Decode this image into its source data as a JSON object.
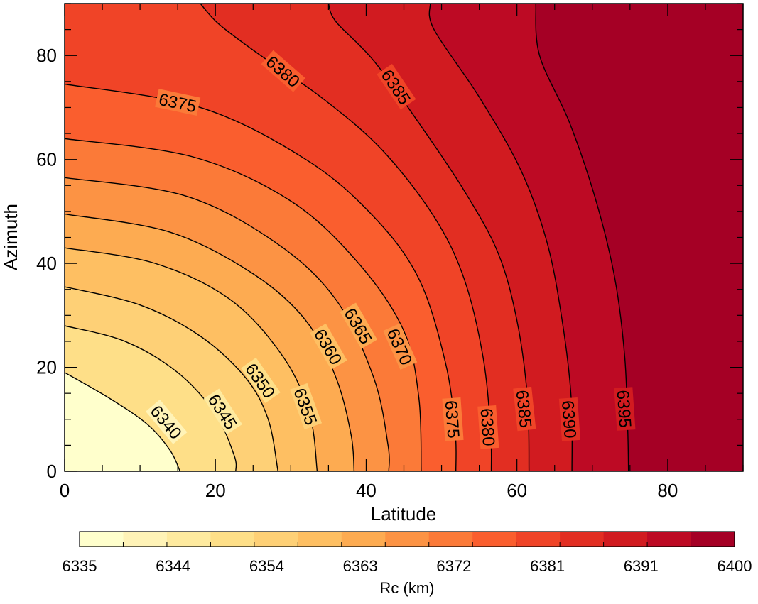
{
  "chart_data": {
    "type": "contour",
    "xlabel": "Latitude",
    "ylabel": "Azimuth",
    "xlim": [
      0,
      90
    ],
    "ylim": [
      0,
      90
    ],
    "x_ticks": [
      0,
      20,
      40,
      60,
      80
    ],
    "y_ticks": [
      0,
      20,
      40,
      60,
      80
    ],
    "x_tick_labels": [
      "0",
      "20",
      "40",
      "60",
      "80"
    ],
    "y_tick_labels": [
      "0",
      "20",
      "40",
      "60",
      "80"
    ],
    "levels": [
      6340,
      6345,
      6350,
      6355,
      6360,
      6365,
      6370,
      6375,
      6380,
      6385,
      6390,
      6395
    ],
    "level_labels": [
      "6340",
      "6345",
      "6350",
      "6355",
      "6360",
      "6365",
      "6370",
      "6375",
      "6380",
      "6385",
      "6390",
      "6395"
    ],
    "contours": [
      {
        "level": 6340,
        "points": [
          [
            0,
            19
          ],
          [
            6,
            14
          ],
          [
            11,
            9
          ],
          [
            14,
            4
          ],
          [
            15.3,
            0
          ]
        ]
      },
      {
        "level": 6345,
        "points": [
          [
            0,
            28
          ],
          [
            8,
            25
          ],
          [
            15,
            19
          ],
          [
            20,
            11
          ],
          [
            22.5,
            3
          ],
          [
            22.7,
            0
          ]
        ]
      },
      {
        "level": 6350,
        "points": [
          [
            0,
            35.5
          ],
          [
            10,
            32
          ],
          [
            18,
            26
          ],
          [
            24,
            18
          ],
          [
            27,
            10
          ],
          [
            28.3,
            0
          ]
        ]
      },
      {
        "level": 6355,
        "points": [
          [
            0,
            43
          ],
          [
            12,
            40
          ],
          [
            22,
            33
          ],
          [
            29,
            22
          ],
          [
            32.5,
            11
          ],
          [
            33.5,
            0
          ]
        ]
      },
      {
        "level": 6360,
        "points": [
          [
            0,
            49.5
          ],
          [
            14,
            46
          ],
          [
            25,
            38
          ],
          [
            32,
            29
          ],
          [
            36,
            18
          ],
          [
            38,
            7
          ],
          [
            38.4,
            0
          ]
        ]
      },
      {
        "level": 6365,
        "points": [
          [
            0,
            56.5
          ],
          [
            16,
            53
          ],
          [
            28,
            44
          ],
          [
            36,
            33
          ],
          [
            41,
            18
          ],
          [
            42.9,
            5
          ],
          [
            43,
            0
          ]
        ]
      },
      {
        "level": 6370,
        "points": [
          [
            0,
            64
          ],
          [
            17,
            60.5
          ],
          [
            30,
            52
          ],
          [
            39,
            40
          ],
          [
            45,
            27
          ],
          [
            47,
            14
          ],
          [
            47.3,
            0
          ]
        ]
      },
      {
        "level": 6375,
        "points": [
          [
            0,
            74.5
          ],
          [
            18,
            70
          ],
          [
            32,
            60
          ],
          [
            41,
            49
          ],
          [
            47,
            37
          ],
          [
            50.5,
            21
          ],
          [
            51.8,
            8
          ],
          [
            51.9,
            0
          ]
        ]
      },
      {
        "level": 6380,
        "points": [
          [
            18,
            90
          ],
          [
            20.5,
            86
          ],
          [
            26,
            80
          ],
          [
            34,
            72
          ],
          [
            42,
            62
          ],
          [
            49,
            49
          ],
          [
            53,
            37
          ],
          [
            55.5,
            22
          ],
          [
            56.5,
            8
          ],
          [
            56.6,
            0
          ]
        ]
      },
      {
        "level": 6385,
        "points": [
          [
            35,
            90
          ],
          [
            36,
            86.5
          ],
          [
            41,
            79
          ],
          [
            47,
            67
          ],
          [
            53,
            54
          ],
          [
            57.5,
            42
          ],
          [
            60,
            29
          ],
          [
            61.4,
            14
          ],
          [
            61.6,
            0
          ]
        ]
      },
      {
        "level": 6390,
        "points": [
          [
            48.5,
            90
          ],
          [
            49,
            85
          ],
          [
            55,
            72
          ],
          [
            60.5,
            58
          ],
          [
            64,
            44
          ],
          [
            66,
            29
          ],
          [
            67.2,
            14
          ],
          [
            67.3,
            0
          ]
        ]
      },
      {
        "level": 6395,
        "points": [
          [
            62.5,
            90
          ],
          [
            63,
            80
          ],
          [
            67,
            67
          ],
          [
            70.5,
            52
          ],
          [
            73,
            37
          ],
          [
            74.3,
            22
          ],
          [
            74.7,
            8
          ],
          [
            74.8,
            0
          ]
        ]
      }
    ],
    "contour_labels": [
      {
        "level": 6340,
        "x": 13.5,
        "y": 9.5,
        "angle": 50
      },
      {
        "level": 6345,
        "x": 21,
        "y": 11.5,
        "angle": 57
      },
      {
        "level": 6350,
        "x": 26,
        "y": 17.5,
        "angle": 55
      },
      {
        "level": 6355,
        "x": 32,
        "y": 12.5,
        "angle": 70
      },
      {
        "level": 6360,
        "x": 35,
        "y": 24,
        "angle": 60
      },
      {
        "level": 6365,
        "x": 39,
        "y": 28,
        "angle": 60
      },
      {
        "level": 6370,
        "x": 44.5,
        "y": 24,
        "angle": 66
      },
      {
        "level": 6375,
        "x": 51.5,
        "y": 10,
        "angle": 86
      },
      {
        "level": 6375,
        "x": 15,
        "y": 71,
        "angle": 12
      },
      {
        "level": 6380,
        "x": 56.2,
        "y": 8.5,
        "angle": 86
      },
      {
        "level": 6380,
        "x": 29,
        "y": 77,
        "angle": 41
      },
      {
        "level": 6385,
        "x": 61,
        "y": 12,
        "angle": 84
      },
      {
        "level": 6385,
        "x": 44,
        "y": 74,
        "angle": 56
      },
      {
        "level": 6390,
        "x": 67,
        "y": 10,
        "angle": 86
      },
      {
        "level": 6395,
        "x": 74.3,
        "y": 12,
        "angle": 86
      }
    ],
    "fill_colors": [
      "#ffffcc",
      "#fff3b7",
      "#feea9f",
      "#fedf88",
      "#fed076",
      "#febf62",
      "#fdab51",
      "#fc9344",
      "#fb7a38",
      "#fa5e2e",
      "#f04427",
      "#e22e22",
      "#d11b20",
      "#bd0a24",
      "#a50025"
    ],
    "colorbar": {
      "label": "Rc (km)",
      "range": [
        6335,
        6400
      ],
      "tick_labels": [
        "6335",
        "6344",
        "6354",
        "6363",
        "6372",
        "6381",
        "6391",
        "6400"
      ],
      "colors": [
        "#ffffcc",
        "#fff3b7",
        "#feea9f",
        "#fedf88",
        "#fed076",
        "#febf62",
        "#fdab51",
        "#fc9344",
        "#fb7a38",
        "#fa5e2e",
        "#f04427",
        "#e22e22",
        "#d11b20",
        "#bd0a24",
        "#a50025"
      ]
    }
  }
}
